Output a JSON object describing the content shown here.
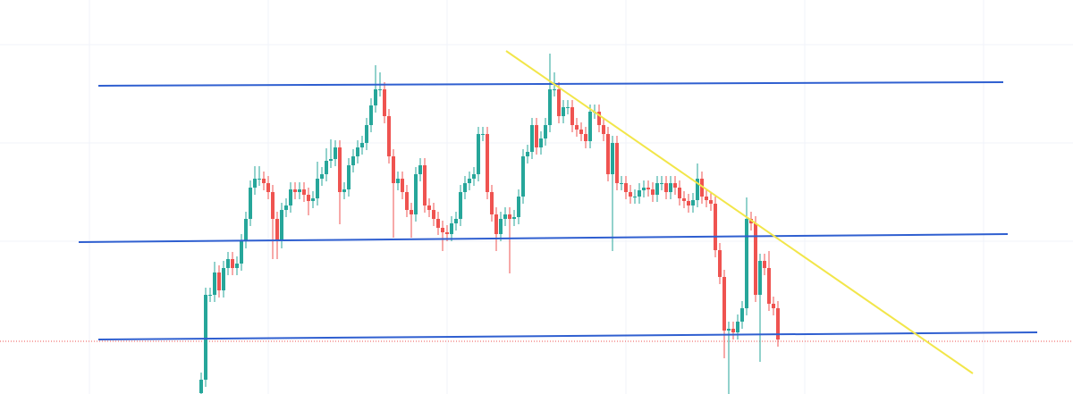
{
  "chart_data": {
    "type": "candlestick",
    "ylim": [
      0,
      441
    ],
    "up_color": "#26a69a",
    "down_color": "#ef5350",
    "open": [
      1,
      16,
      111,
      111,
      136,
      116,
      141,
      151,
      141,
      146,
      171,
      196,
      231,
      241,
      241,
      236,
      226,
      196,
      171,
      206,
      211,
      229,
      226,
      229,
      223,
      216,
      219,
      241,
      246,
      261,
      263,
      276,
      226,
      229,
      256,
      266,
      276,
      281,
      301,
      323,
      341,
      341,
      311,
      266,
      236,
      241,
      226,
      206,
      201,
      246,
      256,
      211,
      206,
      196,
      186,
      181,
      179,
      191,
      196,
      226,
      236,
      241,
      246,
      291,
      291,
      226,
      201,
      179,
      196,
      201,
      196,
      198,
      221,
      266,
      271,
      301,
      276,
      286,
      301,
      341,
      341,
      311,
      321,
      321,
      301,
      296,
      291,
      283,
      316,
      316,
      301,
      291,
      246,
      281,
      236,
      236,
      226,
      221,
      221,
      228,
      231,
      229,
      223,
      236,
      236,
      226,
      236,
      231,
      219,
      216,
      211,
      217,
      241,
      221,
      217,
      213,
      161,
      131,
      71,
      73,
      69,
      81,
      96,
      196,
      191,
      111,
      149,
      141,
      101,
      96
    ],
    "high": [
      24,
      119,
      119,
      148,
      144,
      149,
      159,
      159,
      154,
      179,
      204,
      239,
      255,
      255,
      249,
      244,
      234,
      204,
      214,
      219,
      237,
      237,
      237,
      237,
      231,
      227,
      260,
      254,
      275,
      285,
      284,
      284,
      237,
      264,
      274,
      284,
      289,
      309,
      331,
      368,
      360,
      349,
      319,
      274,
      249,
      249,
      234,
      214,
      254,
      264,
      264,
      219,
      214,
      204,
      194,
      189,
      199,
      204,
      234,
      244,
      249,
      254,
      299,
      299,
      299,
      234,
      209,
      204,
      209,
      209,
      206,
      229,
      274,
      279,
      309,
      309,
      294,
      309,
      381,
      360,
      349,
      329,
      329,
      329,
      309,
      304,
      299,
      324,
      324,
      324,
      309,
      299,
      289,
      289,
      244,
      244,
      234,
      229,
      236,
      239,
      239,
      237,
      244,
      244,
      244,
      244,
      244,
      239,
      227,
      224,
      225,
      258,
      249,
      229,
      225,
      221,
      169,
      139,
      81,
      81,
      89,
      104,
      220,
      204,
      199,
      157,
      157,
      160,
      109,
      104
    ],
    "low": [
      0,
      8,
      103,
      103,
      108,
      108,
      133,
      133,
      133,
      138,
      163,
      188,
      223,
      233,
      228,
      218,
      151,
      151,
      163,
      198,
      203,
      218,
      218,
      215,
      200,
      208,
      211,
      233,
      238,
      253,
      255,
      190,
      218,
      221,
      248,
      258,
      268,
      273,
      293,
      315,
      333,
      303,
      258,
      175,
      228,
      218,
      198,
      175,
      193,
      238,
      203,
      198,
      188,
      178,
      160,
      171,
      171,
      183,
      188,
      218,
      228,
      233,
      238,
      283,
      218,
      193,
      160,
      171,
      188,
      135,
      188,
      190,
      213,
      258,
      263,
      268,
      268,
      278,
      293,
      333,
      303,
      303,
      313,
      293,
      288,
      283,
      275,
      275,
      308,
      293,
      283,
      238,
      160,
      228,
      228,
      218,
      213,
      213,
      213,
      220,
      221,
      215,
      215,
      228,
      218,
      218,
      223,
      211,
      208,
      203,
      203,
      209,
      213,
      209,
      205,
      153,
      123,
      40,
      0,
      61,
      61,
      73,
      88,
      183,
      103,
      36,
      133,
      93,
      88,
      53
    ],
    "close": [
      16,
      111,
      111,
      136,
      116,
      141,
      151,
      141,
      146,
      171,
      196,
      231,
      241,
      241,
      236,
      226,
      196,
      171,
      206,
      211,
      229,
      226,
      229,
      223,
      216,
      219,
      241,
      246,
      261,
      263,
      276,
      226,
      229,
      256,
      266,
      276,
      281,
      301,
      323,
      341,
      341,
      311,
      266,
      236,
      241,
      226,
      206,
      201,
      246,
      256,
      211,
      206,
      196,
      186,
      181,
      179,
      191,
      196,
      226,
      236,
      241,
      246,
      291,
      291,
      226,
      201,
      179,
      196,
      201,
      196,
      198,
      221,
      266,
      271,
      301,
      276,
      286,
      301,
      341,
      341,
      311,
      321,
      321,
      301,
      296,
      291,
      283,
      316,
      316,
      301,
      291,
      246,
      281,
      236,
      236,
      226,
      221,
      221,
      228,
      231,
      229,
      223,
      236,
      236,
      226,
      236,
      231,
      219,
      216,
      211,
      217,
      241,
      221,
      217,
      213,
      161,
      131,
      71,
      73,
      69,
      81,
      96,
      196,
      191,
      111,
      149,
      141,
      101,
      96,
      61
    ]
  }
}
